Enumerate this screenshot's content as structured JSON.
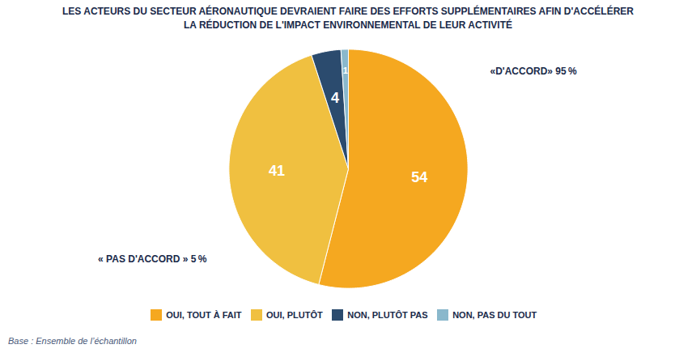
{
  "chart_data": {
    "type": "pie",
    "title": "LES ACTEURS DU SECTEUR AÉRONAUTIQUE DEVRAIENT FAIRE DES EFFORTS SUPPLÉMENTAIRES AFIN D'ACCÉLÉRER\nLA RÉDUCTION DE L'IMPACT ENVIRONNEMENTAL DE LEUR ACTIVITÉ",
    "categories": [
      "OUI, TOUT À FAIT",
      "OUI, PLUTÔT",
      "NON, PLUTÔT PAS",
      "NON, PAS DU TOUT"
    ],
    "values": [
      54,
      41,
      4,
      1
    ],
    "colors": [
      "#F5A820",
      "#F0C040",
      "#2B4B6E",
      "#8AB8CC"
    ],
    "data_labels": true,
    "legend": "bottom",
    "annotations": [
      "«D'ACCORD» 95 %",
      "« PAS D'ACCORD » 5 %",
      "Base : Ensemble de l’échantillon"
    ]
  }
}
